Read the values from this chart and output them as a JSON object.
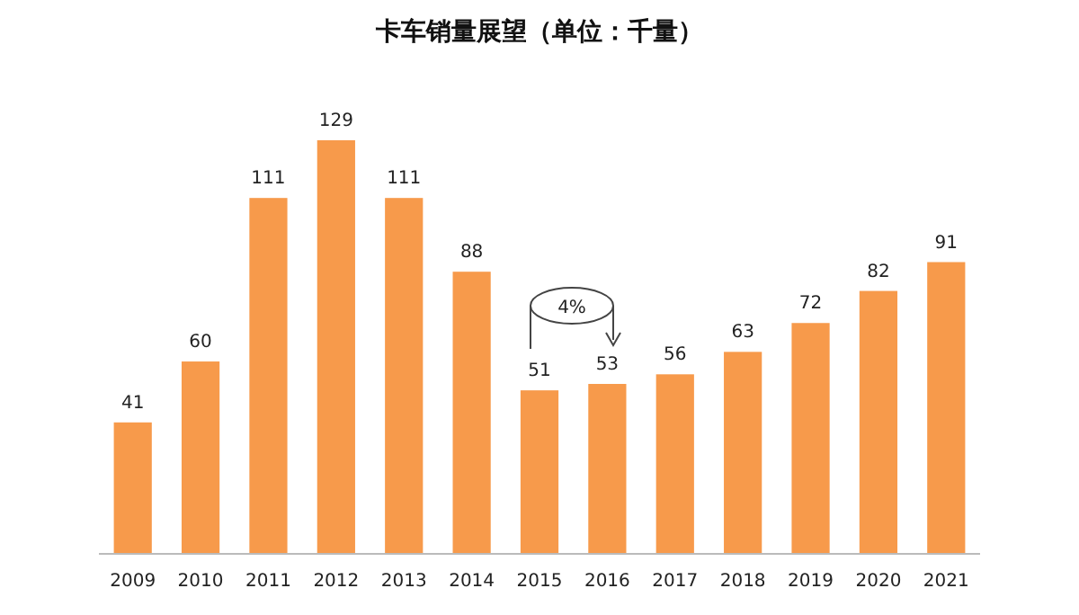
{
  "chart_data": {
    "type": "bar",
    "title": "卡车销量展望（单位：千量）",
    "categories": [
      "2009",
      "2010",
      "2011",
      "2012",
      "2013",
      "2014",
      "2015",
      "2016",
      "2017",
      "2018",
      "2019",
      "2020",
      "2021"
    ],
    "values": [
      41,
      60,
      111,
      129,
      111,
      88,
      51,
      53,
      56,
      63,
      72,
      82,
      91
    ],
    "color": "#f79a4b",
    "data_labels": true,
    "annotations": [
      "4%"
    ]
  }
}
